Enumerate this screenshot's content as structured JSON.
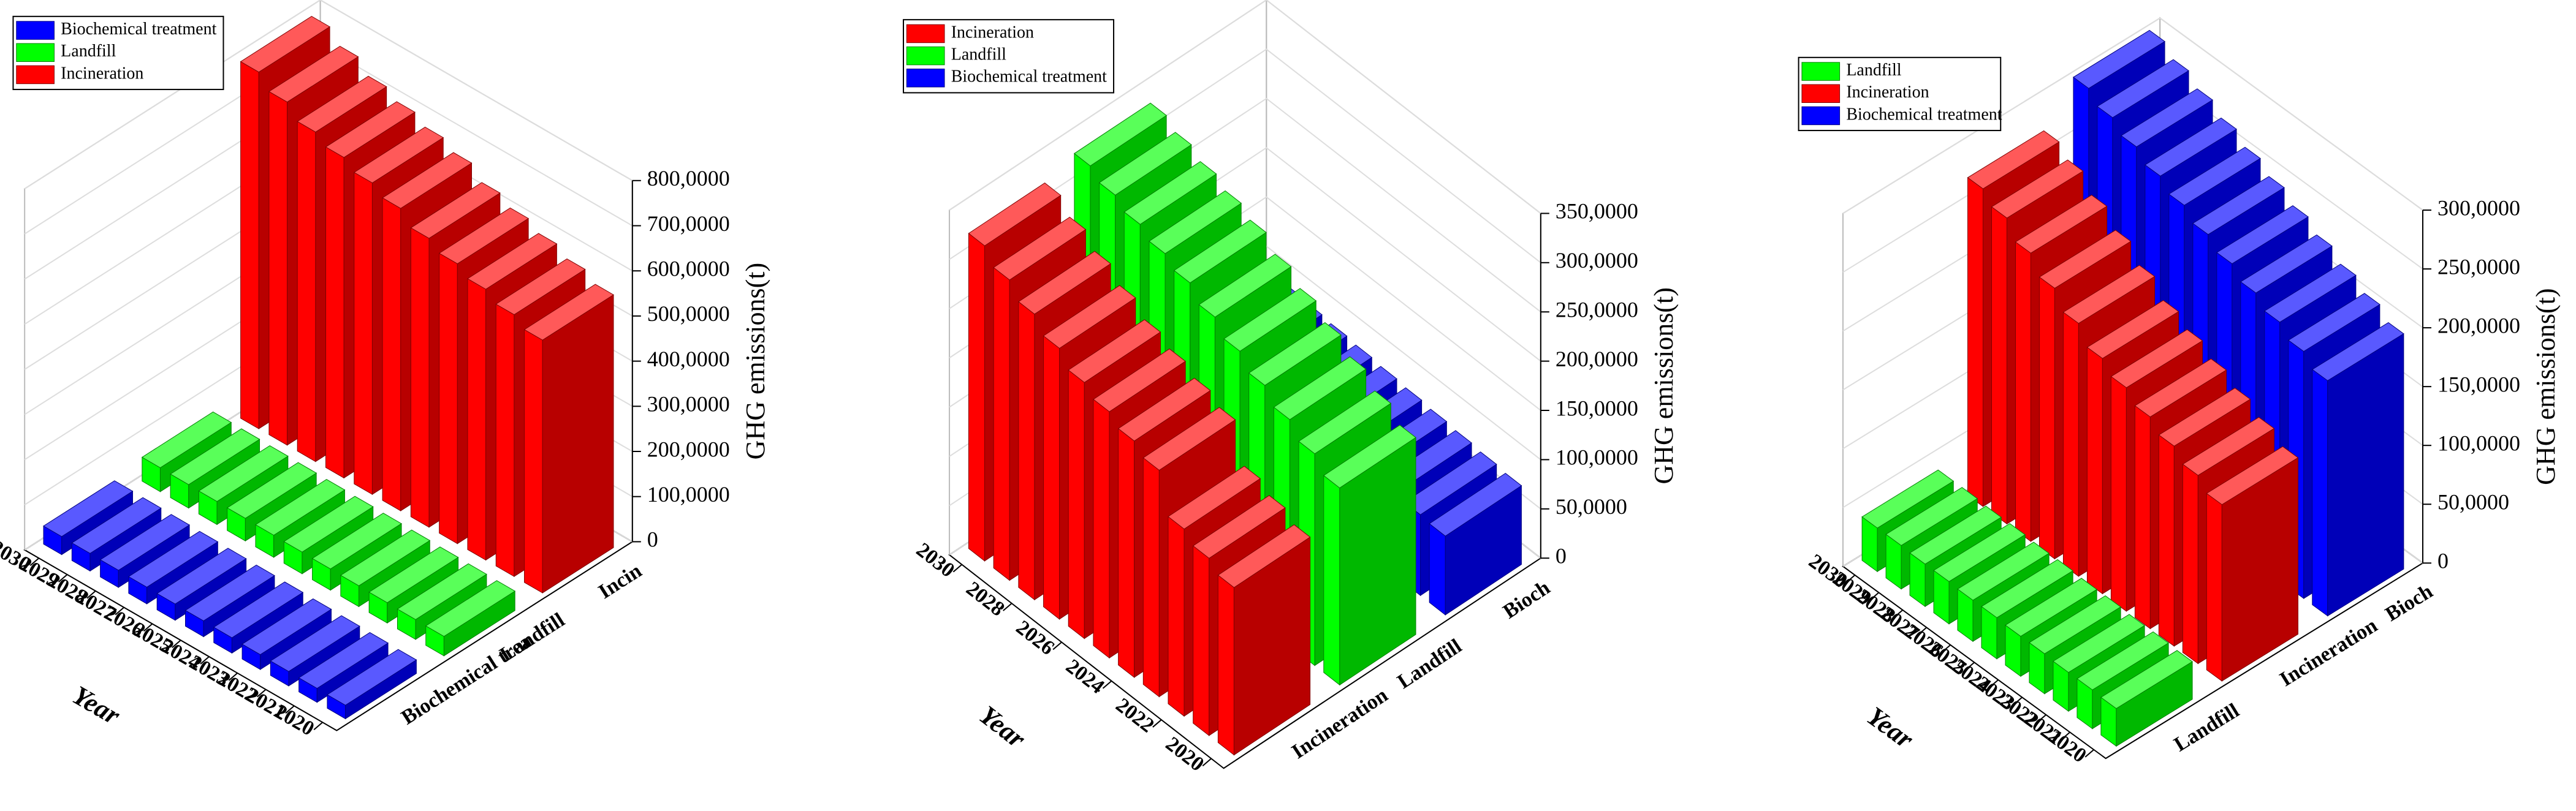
{
  "chart_data": [
    {
      "type": "bar3d",
      "x": [
        2020,
        2021,
        2022,
        2023,
        2024,
        2025,
        2026,
        2027,
        2028,
        2029,
        2030
      ],
      "xlim": [
        2019.5,
        2030.5
      ],
      "xticks": [
        2020,
        2021,
        2022,
        2023,
        2024,
        2025,
        2026,
        2027,
        2028,
        2029,
        2030
      ],
      "xlabel": "Year",
      "zlabel": "GHG emissions(t)",
      "categories": [
        "Biochemical trea",
        "Landfill",
        "Incin"
      ],
      "zlim": [
        0,
        8000000
      ],
      "zticks": [
        0,
        {
          "value": 1000000,
          "label": "100,0000"
        },
        {
          "value": 2000000,
          "label": "200,0000"
        },
        {
          "value": 3000000,
          "label": "300,0000"
        },
        {
          "value": 4000000,
          "label": "400,0000"
        },
        {
          "value": 5000000,
          "label": "500,0000"
        },
        {
          "value": 6000000,
          "label": "600,0000"
        },
        {
          "value": 7000000,
          "label": "700,0000"
        },
        {
          "value": 8000000,
          "label": "800,0000"
        }
      ],
      "grid": true,
      "series": [
        {
          "name": "Biochemical treatment",
          "color": "#0000ff",
          "values": [
            300000,
            310000,
            320000,
            330000,
            340000,
            350000,
            360000,
            370000,
            380000,
            390000,
            400000
          ]
        },
        {
          "name": "Landfill",
          "color": "#00ff00",
          "values": [
            430000,
            440000,
            450000,
            460000,
            470000,
            480000,
            490000,
            500000,
            510000,
            520000,
            530000
          ]
        },
        {
          "name": "Incineration",
          "color": "#ff0000",
          "values": [
            5600000,
            5800000,
            6000000,
            6200000,
            6400000,
            6700000,
            6900000,
            7100000,
            7300000,
            7600000,
            7900000
          ]
        }
      ]
    },
    {
      "type": "bar3d",
      "x": [
        2020,
        2021,
        2022,
        2023,
        2024,
        2025,
        2026,
        2027,
        2028,
        2029,
        2030
      ],
      "xlim": [
        2019.5,
        2030.5
      ],
      "xticks": [
        2020,
        2022,
        2024,
        2026,
        2028,
        2030
      ],
      "xlabel": "Year",
      "zlabel": "GHG emissions(t)",
      "categories": [
        "Incineration",
        "Landfill",
        "Bioch"
      ],
      "zlim": [
        0,
        3500000
      ],
      "zticks": [
        0,
        {
          "value": 500000,
          "label": "50,0000"
        },
        {
          "value": 1000000,
          "label": "100,0000"
        },
        {
          "value": 1500000,
          "label": "150,0000"
        },
        {
          "value": 2000000,
          "label": "200,0000"
        },
        {
          "value": 2500000,
          "label": "250,0000"
        },
        {
          "value": 3000000,
          "label": "300,0000"
        },
        {
          "value": 3500000,
          "label": "350,0000"
        }
      ],
      "grid": true,
      "series": [
        {
          "name": "Incineration",
          "color": "#ff0000",
          "values": [
            1700000,
            1800000,
            1900000,
            2300000,
            2400000,
            2500000,
            2600000,
            2750000,
            2900000,
            3050000,
            3200000
          ]
        },
        {
          "name": "Landfill",
          "color": "#00ff00",
          "values": [
            2000000,
            2150000,
            2300000,
            2450000,
            2600000,
            2750000,
            2900000,
            3000000,
            3100000,
            3200000,
            3300000
          ]
        },
        {
          "name": "Biochemical treatment",
          "color": "#0000ff",
          "values": [
            800000,
            820000,
            840000,
            860000,
            880000,
            900000,
            920000,
            940000,
            960000,
            980000,
            1000000
          ]
        }
      ]
    },
    {
      "type": "bar3d",
      "x": [
        2020,
        2021,
        2022,
        2023,
        2024,
        2025,
        2026,
        2027,
        2028,
        2029,
        2030
      ],
      "xlim": [
        2019.5,
        2030.5
      ],
      "xticks": [
        2020,
        2021,
        2022,
        2023,
        2024,
        2025,
        2026,
        2027,
        2028,
        2029,
        2030
      ],
      "xlabel": "Year",
      "zlabel": "GHG emissions(t)",
      "categories": [
        "Landfill",
        "Incineration",
        "Bioch"
      ],
      "zlim": [
        0,
        3000000
      ],
      "zticks": [
        0,
        {
          "value": 500000,
          "label": "50,0000"
        },
        {
          "value": 1000000,
          "label": "100,0000"
        },
        {
          "value": 1500000,
          "label": "150,0000"
        },
        {
          "value": 2000000,
          "label": "200,0000"
        },
        {
          "value": 2500000,
          "label": "250,0000"
        },
        {
          "value": 3000000,
          "label": "300,0000"
        }
      ],
      "grid": true,
      "series": [
        {
          "name": "Landfill",
          "color": "#00ff00",
          "values": [
            320000,
            330000,
            330000,
            340000,
            340000,
            350000,
            350000,
            360000,
            360000,
            370000,
            370000
          ]
        },
        {
          "name": "Incineration",
          "color": "#ff0000",
          "values": [
            1500000,
            1600000,
            1700000,
            1800000,
            1900000,
            2000000,
            2150000,
            2300000,
            2450000,
            2600000,
            2700000
          ]
        },
        {
          "name": "Biochemical treatment",
          "color": "#0000ff",
          "values": [
            2000000,
            2100000,
            2200000,
            2300000,
            2400000,
            2500000,
            2600000,
            2700000,
            2800000,
            2900000,
            3000000
          ]
        }
      ]
    }
  ]
}
